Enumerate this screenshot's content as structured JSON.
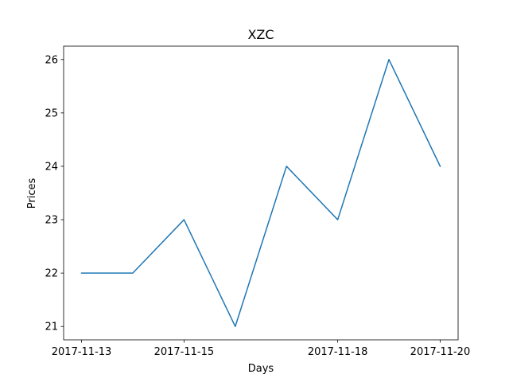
{
  "chart_data": {
    "type": "line",
    "title": "XZC",
    "xlabel": "Days",
    "ylabel": "Prices",
    "x": [
      "2017-11-13",
      "2017-11-14",
      "2017-11-15",
      "2017-11-16",
      "2017-11-17",
      "2017-11-18",
      "2017-11-19",
      "2017-11-20"
    ],
    "series": [
      {
        "values": [
          22,
          22,
          23,
          21,
          24,
          23,
          26,
          24
        ],
        "color": "#1f77b4"
      }
    ],
    "xticks": [
      "2017-11-13",
      "2017-11-15",
      "2017-11-18",
      "2017-11-20"
    ],
    "yticks": [
      21,
      22,
      23,
      24,
      25,
      26
    ],
    "ylim": [
      20.75,
      26.25
    ],
    "grid": false,
    "legend": "none"
  }
}
